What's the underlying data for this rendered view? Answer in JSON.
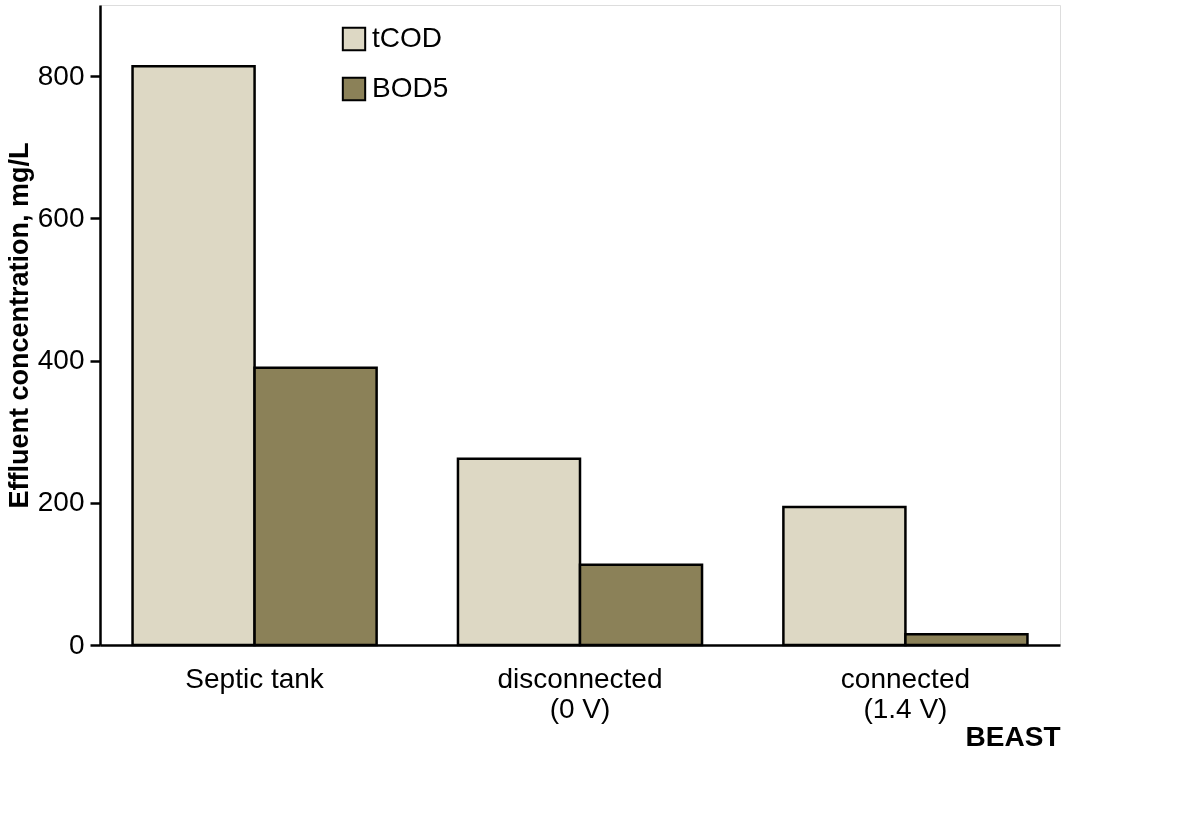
{
  "chart_data": {
    "type": "bar",
    "xlabel": "BEAST",
    "ylabel": "Effluent concentration, mg/L",
    "categories": [
      "Septic tank",
      "disconnected\n(0 V)",
      "connected\n(1.4 V)"
    ],
    "series": [
      {
        "name": "tCOD",
        "color": "#ddd8c4",
        "values": [
          814,
          262,
          194
        ]
      },
      {
        "name": "BOD5",
        "color": "#8b8158",
        "values": [
          390,
          113,
          15
        ]
      }
    ],
    "ylim": [
      0,
      900
    ],
    "yticks": [
      0,
      200,
      400,
      600,
      800
    ],
    "grid": false,
    "legend": "top"
  }
}
